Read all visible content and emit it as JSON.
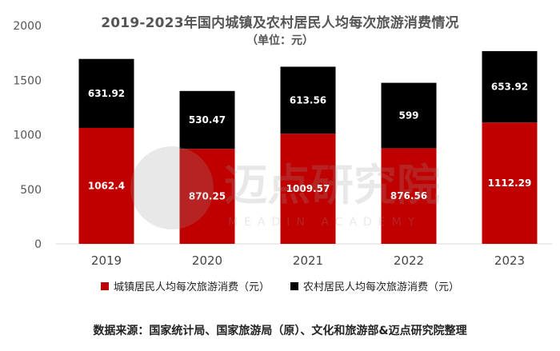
{
  "chart_data": {
    "type": "bar",
    "stacked": true,
    "title": "2019-2023年国内城镇及农村居民人均每次旅游消费情况",
    "subtitle": "（单位：元）",
    "categories": [
      "2019",
      "2020",
      "2021",
      "2022",
      "2023"
    ],
    "series": [
      {
        "name": "城镇居民人均每次旅游消费（元）",
        "color": "#c00000",
        "values": [
          1062.4,
          870.25,
          1009.57,
          876.56,
          1112.29
        ]
      },
      {
        "name": "农村居民人均每次旅游消费（元）",
        "color": "#000000",
        "values": [
          631.92,
          530.47,
          613.56,
          599,
          653.92
        ]
      }
    ],
    "data_labels": [
      [
        "1062.4",
        "870.25",
        "1009.57",
        "876.56",
        "1112.29"
      ],
      [
        "631.92",
        "530.47",
        "613.56",
        "599",
        "653.92"
      ]
    ],
    "ylim": [
      0,
      2000
    ],
    "yticks": [
      "0",
      "500",
      "1000",
      "1500",
      "2000"
    ],
    "grid": false,
    "legend_position": "bottom"
  },
  "source_text": "数据来源：国家统计局、国家旅游局（原）、文化和旅游部&迈点研究院整理",
  "watermark": {
    "brand": "迈点研究院",
    "tagline": "MEADIN ACADEMY"
  }
}
